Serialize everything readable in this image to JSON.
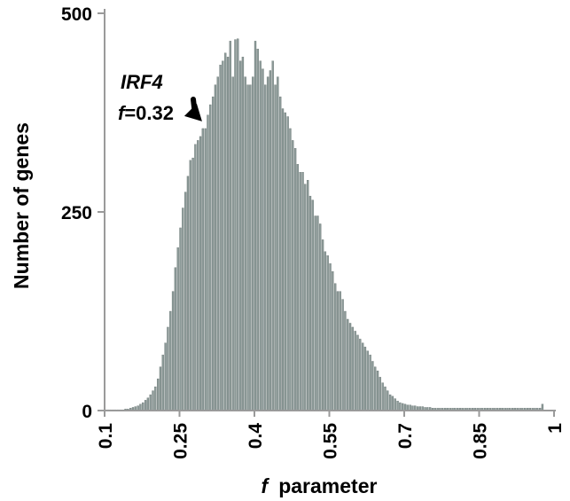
{
  "chart_data": {
    "type": "bar",
    "title": "",
    "xlabel_italic": "f",
    "xlabel_rest": "parameter",
    "ylabel": "Number of genes",
    "xlim": [
      0.1,
      1.0
    ],
    "ylim": [
      0,
      500
    ],
    "x_ticks": [
      0.1,
      0.25,
      0.4,
      0.55,
      0.7,
      0.85,
      1
    ],
    "x_tick_labels": [
      "0.1",
      "0.25",
      "0.4",
      "0.55",
      "0.7",
      "0.85",
      "1"
    ],
    "y_ticks": [
      0,
      250,
      500
    ],
    "y_tick_labels": [
      "0",
      "250",
      "500"
    ],
    "bin_width": 0.005,
    "bin_start": 0.1,
    "bar_color": "#8c9a98",
    "bar_edge_color": "#5a6664",
    "values": [
      1,
      1,
      1,
      1,
      1,
      1,
      1,
      1,
      2,
      2,
      3,
      4,
      5,
      6,
      8,
      10,
      13,
      16,
      20,
      25,
      30,
      40,
      55,
      70,
      85,
      105,
      125,
      150,
      180,
      205,
      230,
      255,
      275,
      295,
      315,
      318,
      335,
      340,
      345,
      355,
      355,
      372,
      385,
      395,
      410,
      420,
      435,
      440,
      450,
      445,
      465,
      420,
      467,
      468,
      440,
      445,
      420,
      410,
      410,
      420,
      465,
      455,
      440,
      430,
      410,
      420,
      428,
      440,
      410,
      420,
      395,
      380,
      375,
      370,
      355,
      340,
      330,
      310,
      300,
      300,
      285,
      290,
      270,
      265,
      245,
      245,
      235,
      215,
      200,
      195,
      185,
      175,
      160,
      150,
      150,
      140,
      125,
      115,
      110,
      105,
      100,
      95,
      90,
      85,
      80,
      75,
      70,
      62,
      55,
      50,
      42,
      35,
      30,
      25,
      20,
      18,
      15,
      12,
      10,
      9,
      8,
      7,
      7,
      6,
      6,
      5,
      5,
      5,
      4,
      4,
      4,
      3,
      3,
      3,
      3,
      3,
      3,
      3,
      3,
      3,
      3,
      3,
      3,
      3,
      3,
      3,
      3,
      3,
      3,
      3,
      3,
      3,
      3,
      3,
      3,
      3,
      3,
      3,
      3,
      3,
      3,
      3,
      3,
      3,
      3,
      3,
      3,
      3,
      3,
      3,
      3,
      3,
      3,
      3,
      3,
      8
    ],
    "annotation": {
      "gene": "IRF4",
      "f_symbol": "f",
      "f_value": "=0.32",
      "target_x": 0.32,
      "target_y": 355
    }
  }
}
